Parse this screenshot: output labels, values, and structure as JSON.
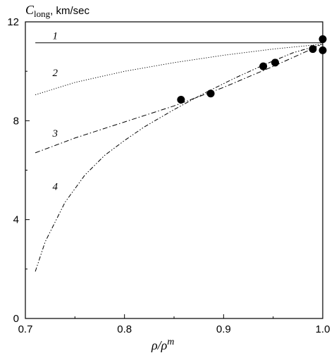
{
  "chart_data": {
    "type": "line",
    "ylabel": {
      "main": "C",
      "sub": "long",
      "unit": ",  km/sec"
    },
    "xlabel": {
      "main": "ρ/ρ",
      "sup": "m"
    },
    "xlim": [
      0.7,
      1.0
    ],
    "ylim": [
      0,
      12
    ],
    "xticks": [
      0.7,
      0.8,
      0.9,
      1.0
    ],
    "xtick_labels": [
      "0.7",
      "0.8",
      "0.9",
      "1.0"
    ],
    "yticks": [
      0,
      4,
      8,
      12
    ],
    "ytick_labels": [
      "0",
      "4",
      "8",
      "12"
    ],
    "grid": false,
    "series": [
      {
        "name": "1",
        "style": "solid",
        "x": [
          0.71,
          1.0
        ],
        "y": [
          11.15,
          11.15
        ]
      },
      {
        "name": "2",
        "style": "dotted",
        "x": [
          0.71,
          0.75,
          0.8,
          0.85,
          0.9,
          0.95,
          1.0
        ],
        "y": [
          9.05,
          9.55,
          10.0,
          10.35,
          10.65,
          10.9,
          11.1
        ]
      },
      {
        "name": "3",
        "style": "dash-dot",
        "x": [
          0.71,
          0.75,
          0.8,
          0.85,
          0.9,
          0.95,
          1.0
        ],
        "y": [
          6.7,
          7.3,
          7.95,
          8.6,
          9.35,
          10.2,
          11.1
        ]
      },
      {
        "name": "4",
        "style": "dash-dot-dot",
        "x": [
          0.71,
          0.72,
          0.74,
          0.76,
          0.78,
          0.8,
          0.82,
          0.85,
          0.88,
          0.91,
          0.94,
          0.97,
          1.0
        ],
        "y": [
          1.9,
          3.1,
          4.7,
          5.8,
          6.6,
          7.2,
          7.75,
          8.45,
          9.1,
          9.7,
          10.25,
          10.75,
          11.1
        ]
      }
    ],
    "markers": {
      "x": [
        0.857,
        0.887,
        0.94,
        0.952,
        0.99,
        1.0,
        1.0
      ],
      "y": [
        8.85,
        9.1,
        10.2,
        10.35,
        10.9,
        11.3,
        10.85
      ]
    },
    "curve_labels": [
      {
        "text": "1",
        "x": 0.73,
        "y": 11.3
      },
      {
        "text": "2",
        "x": 0.73,
        "y": 9.8
      },
      {
        "text": "3",
        "x": 0.73,
        "y": 7.35
      },
      {
        "text": "4",
        "x": 0.73,
        "y": 5.2
      }
    ]
  }
}
